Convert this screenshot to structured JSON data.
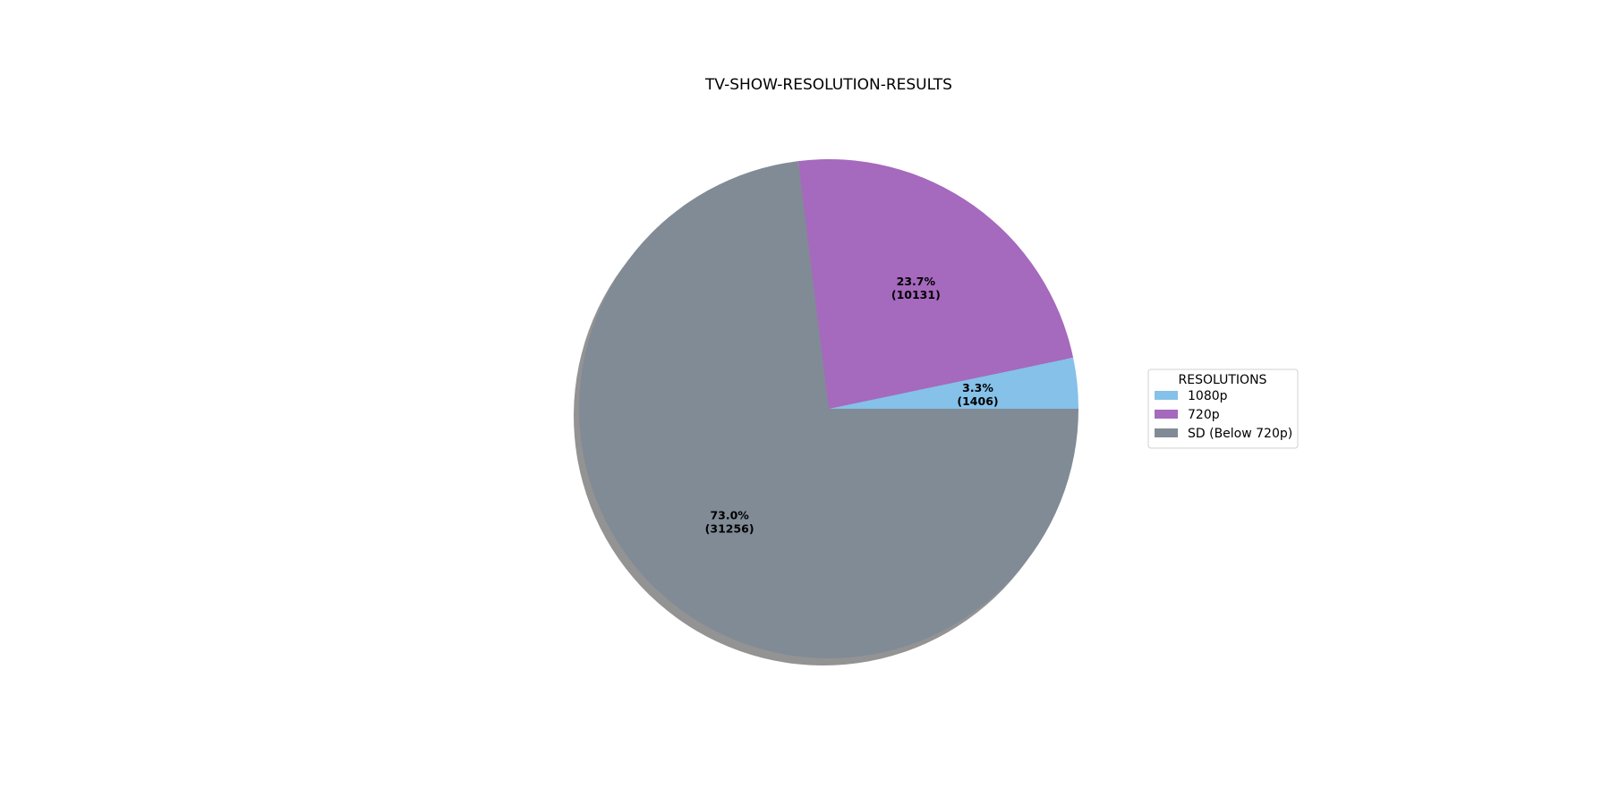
{
  "chart_data": {
    "type": "pie",
    "title": "TV-SHOW-RESOLUTION-RESULTS",
    "labels": [
      "1080p",
      "720p",
      "SD (Below 720p)"
    ],
    "values": [
      1406,
      10131,
      31256
    ],
    "percent_labels": [
      "3.3%",
      "23.7%",
      "73.0%"
    ],
    "count_labels": [
      "(1406)",
      "(10131)",
      "(31256)"
    ],
    "colors": [
      "#85c1e9",
      "#a569bd",
      "#808b96"
    ],
    "start_angle_deg": 0,
    "direction": "counterclockwise",
    "shadow": true,
    "legend": {
      "title": "RESOLUTIONS",
      "placement": "right"
    }
  }
}
